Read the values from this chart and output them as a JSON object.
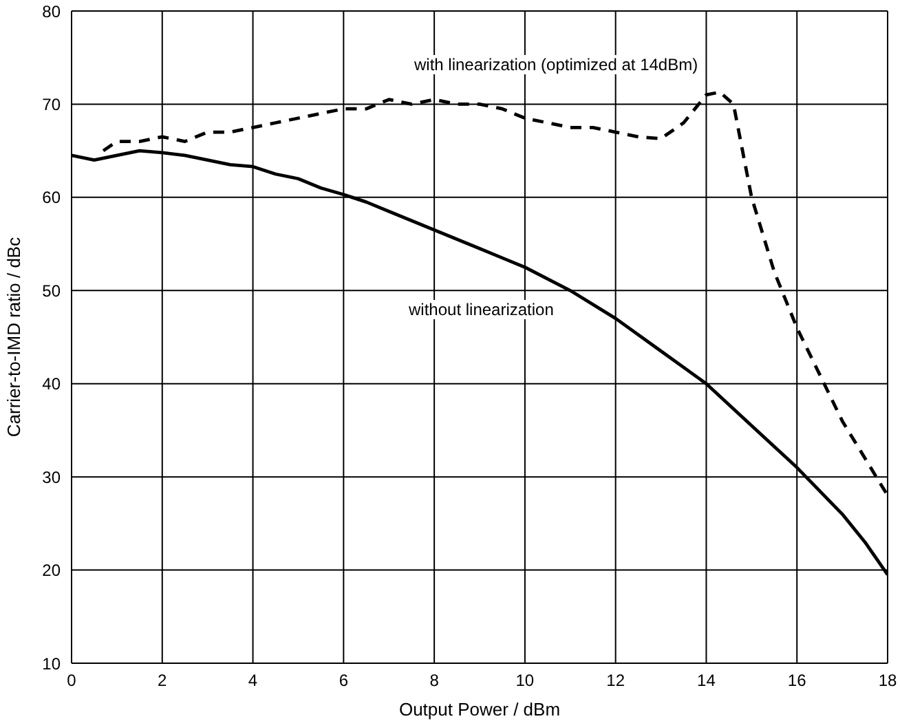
{
  "chart_data": {
    "type": "line",
    "xlabel": "Output Power / dBm",
    "ylabel": "Carrier-to-IMD ratio / dBc",
    "xlim": [
      0,
      18
    ],
    "ylim": [
      10,
      80
    ],
    "xticks": [
      0,
      2,
      4,
      6,
      8,
      10,
      12,
      14,
      16,
      18
    ],
    "yticks": [
      10,
      20,
      30,
      40,
      50,
      60,
      70,
      80
    ],
    "grid": true,
    "series": [
      {
        "color": "#000000",
        "line_style": "dashed",
        "x": [
          0.7,
          1,
          1.5,
          2,
          2.5,
          3,
          3.5,
          4,
          4.5,
          5,
          5.5,
          6,
          6.5,
          7,
          7.5,
          8,
          8.5,
          9,
          9.5,
          10,
          10.5,
          11,
          11.5,
          12,
          12.5,
          13,
          13.5,
          14,
          14.3,
          14.6,
          15,
          15.5,
          16,
          16.5,
          17,
          17.5,
          18
        ],
        "values": [
          65,
          66,
          66,
          66.5,
          66,
          67,
          67,
          67.5,
          68,
          68.5,
          69,
          69.5,
          69.5,
          70.5,
          70,
          70.5,
          70,
          70,
          69.5,
          68.5,
          68,
          67.5,
          67.5,
          67,
          66.5,
          66.3,
          68,
          71,
          71.3,
          70,
          60,
          52,
          46,
          41,
          36,
          32,
          28
        ]
      },
      {
        "color": "#000000",
        "line_style": "solid",
        "x": [
          0,
          0.5,
          1,
          1.5,
          2,
          2.5,
          3,
          3.5,
          4,
          4.5,
          5,
          5.5,
          6,
          6.5,
          7,
          7.5,
          8,
          8.5,
          9,
          9.5,
          10,
          11,
          12,
          13,
          14,
          15,
          16,
          17,
          17.5,
          18
        ],
        "values": [
          64.5,
          64,
          64.5,
          65,
          64.8,
          64.5,
          64,
          63.5,
          63.3,
          62.5,
          62,
          61,
          60.3,
          59.5,
          58.5,
          57.5,
          56.5,
          55.5,
          54.5,
          53.5,
          52.5,
          50,
          47,
          43.5,
          40,
          35.5,
          31,
          26,
          23,
          19.5
        ]
      }
    ],
    "annotations": [
      "with linearization (optimized at 14dBm)",
      "without linearization"
    ]
  }
}
